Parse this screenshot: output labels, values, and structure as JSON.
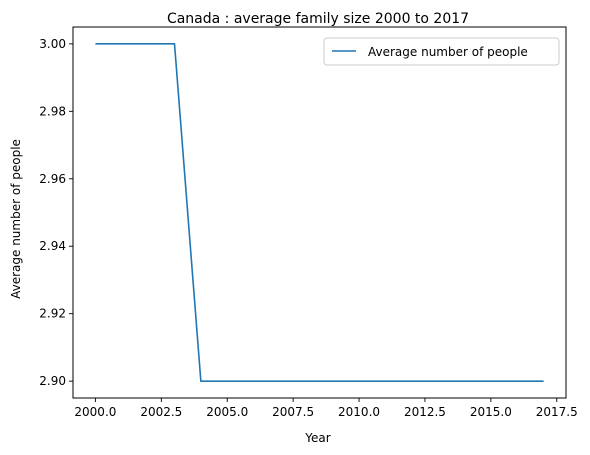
{
  "chart_data": {
    "type": "line",
    "title": "Canada : average family size 2000 to 2017",
    "xlabel": "Year",
    "ylabel": "Average number of people",
    "xlim": [
      2000.0,
      2017.0
    ],
    "ylim": [
      2.9,
      3.0
    ],
    "xticks": [
      2000.0,
      2002.5,
      2005.0,
      2007.5,
      2010.0,
      2012.5,
      2015.0,
      2017.5
    ],
    "xtick_labels": [
      "2000.0",
      "2002.5",
      "2005.0",
      "2007.5",
      "2010.0",
      "2012.5",
      "2015.0",
      "2017.5"
    ],
    "yticks": [
      2.9,
      2.92,
      2.94,
      2.96,
      2.98,
      3.0
    ],
    "ytick_labels": [
      "2.90",
      "2.92",
      "2.94",
      "2.96",
      "2.98",
      "3.00"
    ],
    "legend_position": "top-right",
    "grid": false,
    "series": [
      {
        "name": "Average number of people",
        "color": "#1f77b4",
        "x": [
          2000,
          2001,
          2002,
          2003,
          2004,
          2005,
          2006,
          2007,
          2008,
          2009,
          2010,
          2011,
          2012,
          2013,
          2014,
          2015,
          2016,
          2017
        ],
        "values": [
          3.0,
          3.0,
          3.0,
          3.0,
          2.9,
          2.9,
          2.9,
          2.9,
          2.9,
          2.9,
          2.9,
          2.9,
          2.9,
          2.9,
          2.9,
          2.9,
          2.9,
          2.9
        ]
      }
    ]
  }
}
